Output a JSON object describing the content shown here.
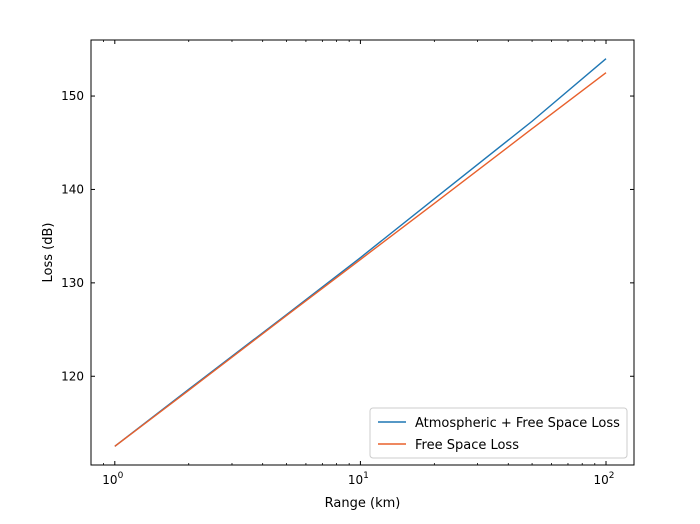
{
  "chart_data": {
    "type": "line",
    "title": "",
    "xlabel": "Range (km)",
    "ylabel": "Loss (dB)",
    "xscale": "log",
    "xlim": [
      0.8,
      130
    ],
    "ylim": [
      110.5,
      156
    ],
    "grid": false,
    "legend_position": "lower-right",
    "x_ticks": [
      {
        "value": 1,
        "base": "10",
        "exp": "0"
      },
      {
        "value": 10,
        "base": "10",
        "exp": "1"
      },
      {
        "value": 100,
        "base": "10",
        "exp": "2"
      }
    ],
    "y_ticks": [
      120,
      130,
      140,
      150
    ],
    "x": [
      1,
      2,
      5,
      10,
      20,
      50,
      100
    ],
    "series": [
      {
        "name": "Atmospheric + Free Space Loss",
        "color": "#1f77b4",
        "values": [
          112.5,
          118.6,
          126.6,
          132.7,
          139.0,
          147.3,
          154.0
        ]
      },
      {
        "name": "Free Space Loss",
        "color": "#e8602c",
        "values": [
          112.5,
          118.5,
          126.5,
          132.5,
          138.5,
          146.5,
          152.5
        ]
      }
    ]
  }
}
